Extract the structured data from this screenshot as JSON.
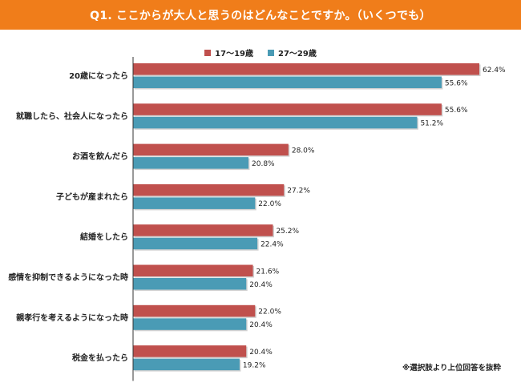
{
  "header": {
    "title": "Q1. ここからが大人と思うのはどんなことですか。（いくつでも）"
  },
  "footnote": "※選択肢より上位回答を抜粋",
  "colors": {
    "header": "#f07d1a",
    "series1": "#c0504d",
    "series2": "#4a9bb5"
  },
  "chart_data": {
    "type": "bar",
    "orientation": "horizontal",
    "categories": [
      "20歳になったら",
      "就職したら、社会人になったら",
      "お酒を飲んだら",
      "子どもが産まれたら",
      "結婚をしたら",
      "感情を抑制できるようになった時",
      "親孝行を考えるようになった時",
      "税金を払ったら"
    ],
    "series": [
      {
        "name": "17〜19歳",
        "values": [
          62.4,
          55.6,
          28.0,
          27.2,
          25.2,
          21.6,
          22.0,
          20.4
        ],
        "labels": [
          "62.4%",
          "55.6%",
          "28.0%",
          "27.2%",
          "25.2%",
          "21.6%",
          "22.0%",
          "20.4%"
        ]
      },
      {
        "name": "27〜29歳",
        "values": [
          55.6,
          51.2,
          20.8,
          22.0,
          22.4,
          20.4,
          20.4,
          19.2
        ],
        "labels": [
          "55.6%",
          "51.2%",
          "20.8%",
          "22.0%",
          "22.4%",
          "20.4%",
          "20.4%",
          "19.2%"
        ]
      }
    ],
    "xlim": [
      0,
      65
    ],
    "legend": "top",
    "grid": false
  }
}
